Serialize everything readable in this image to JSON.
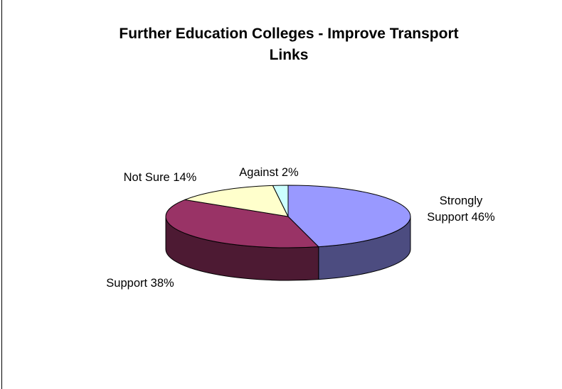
{
  "chart_data": {
    "type": "pie",
    "title_lines": [
      "Further Education Colleges - Improve Transport",
      "Links"
    ],
    "categories": [
      "Strongly Support",
      "Support",
      "Not Sure",
      "Against"
    ],
    "values": [
      46,
      38,
      14,
      2
    ],
    "value_suffix": "%",
    "colors": {
      "top": [
        "#9999ff",
        "#993366",
        "#ffffcc",
        "#ccffff"
      ],
      "side": [
        "#4c4c80",
        "#4d1a33"
      ]
    },
    "labels": [
      {
        "lines": [
          "Strongly",
          "Support 46%"
        ]
      },
      {
        "lines": [
          "Support 38%"
        ]
      },
      {
        "lines": [
          "Not Sure 14%"
        ]
      },
      {
        "lines": [
          "Against 2%"
        ]
      }
    ],
    "style": "3d-pie",
    "legend": "none"
  }
}
